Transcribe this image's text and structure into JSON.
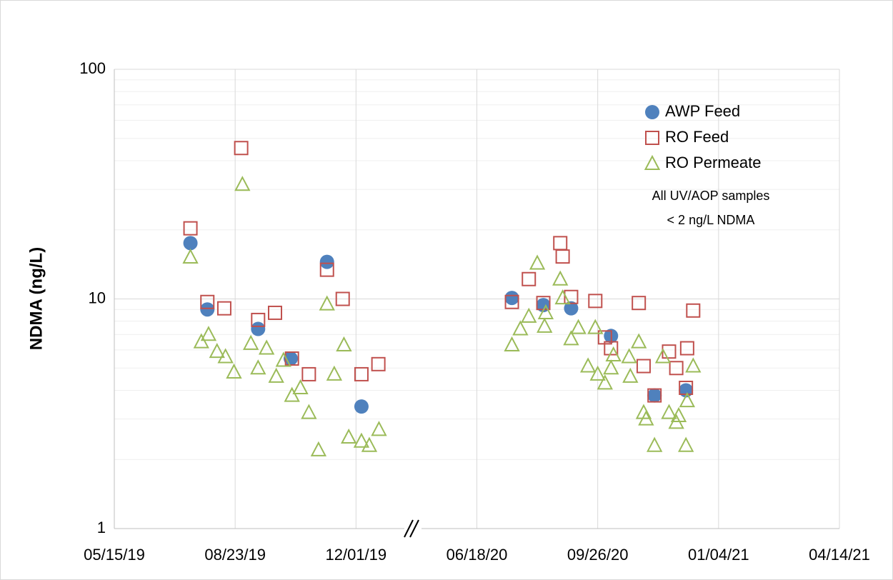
{
  "chart_data": {
    "type": "scatter",
    "y_label": "NDMA (ng/L)",
    "log_y": true,
    "grid": true,
    "legend": "upper right",
    "annotation": [
      "All UV/AOP samples",
      "< 2 ng/L NDMA"
    ],
    "ylim": [
      1,
      100
    ],
    "yticks": [
      1,
      10,
      100
    ],
    "xticks": [
      "05/15/19",
      "08/23/19",
      "12/01/19",
      "06/18/20",
      "09/26/20",
      "01/04/21",
      "04/14/21"
    ],
    "series": [
      {
        "name": "AWP Feed",
        "color": "#4f81bd",
        "marker": "circle",
        "x": [
          "07/17/19",
          "07/31/19",
          "09/11/19",
          "10/08/19",
          "11/07/19",
          "12/10/19",
          "07/17/20",
          "08/12/20",
          "09/04/20",
          "10/07/20",
          "11/12/20",
          "12/08/20"
        ],
        "values": [
          17.5,
          9.0,
          7.4,
          5.5,
          14.5,
          3.4,
          10.1,
          9.4,
          9.1,
          6.9,
          3.8,
          4.0
        ]
      },
      {
        "name": "RO Feed",
        "color": "#c0504d",
        "marker": "square",
        "x": [
          "07/17/19",
          "07/31/19",
          "08/14/19",
          "08/28/19",
          "09/11/19",
          "09/25/19",
          "10/09/19",
          "10/23/19",
          "11/07/19",
          "11/20/19",
          "12/10/19",
          "01/07/20",
          "07/17/20",
          "07/31/20",
          "08/12/20",
          "08/26/20",
          "08/28/20",
          "09/04/20",
          "09/24/20",
          "10/02/20",
          "10/07/20",
          "10/30/20",
          "11/03/20",
          "11/12/20",
          "11/24/20",
          "11/30/20",
          "12/08/20",
          "12/09/20",
          "12/14/20"
        ],
        "values": [
          20.3,
          9.7,
          9.1,
          45.4,
          8.1,
          8.7,
          5.5,
          4.7,
          13.4,
          10,
          4.7,
          5.2,
          9.7,
          12.2,
          9.6,
          17.5,
          15.3,
          10.2,
          9.8,
          6.8,
          6.1,
          9.6,
          5.1,
          3.8,
          5.9,
          5.0,
          4.1,
          6.1,
          8.9
        ]
      },
      {
        "name": "RO Permeate",
        "color": "#9bbb59",
        "marker": "triangle",
        "x": [
          "07/17/19",
          "07/26/19",
          "08/01/19",
          "08/08/19",
          "08/15/19",
          "08/22/19",
          "08/29/19",
          "09/05/19",
          "09/11/19",
          "09/18/19",
          "09/26/19",
          "10/02/19",
          "10/09/19",
          "10/16/19",
          "10/23/19",
          "10/31/19",
          "11/07/19",
          "11/13/19",
          "11/21/19",
          "11/25/19",
          "12/10/19",
          "12/23/19",
          "01/08/20",
          "07/17/20",
          "07/24/20",
          "07/31/20",
          "08/07/20",
          "08/13/20",
          "08/14/20",
          "08/26/20",
          "08/28/20",
          "09/04/20",
          "09/10/20",
          "09/18/20",
          "09/24/20",
          "09/26/20",
          "10/02/20",
          "10/07/20",
          "10/09/20",
          "10/22/20",
          "10/23/20",
          "10/30/20",
          "11/03/20",
          "11/05/20",
          "11/12/20",
          "11/19/20",
          "11/24/20",
          "11/30/20",
          "12/02/20",
          "12/08/20",
          "12/09/20",
          "12/14/20"
        ],
        "values": [
          15.2,
          6.5,
          7.0,
          5.9,
          5.6,
          4.8,
          31.5,
          6.4,
          5.0,
          6.1,
          4.6,
          5.4,
          3.8,
          4.1,
          3.2,
          2.2,
          9.5,
          4.7,
          6.3,
          2.5,
          2.4,
          2.3,
          2.7,
          6.3,
          7.4,
          8.4,
          14.3,
          7.6,
          8.7,
          12.2,
          10.1,
          6.7,
          7.5,
          5.1,
          7.5,
          4.7,
          4.3,
          5.0,
          5.7,
          5.6,
          4.6,
          6.5,
          3.2,
          3.0,
          2.3,
          5.6,
          3.2,
          2.9,
          3.1,
          2.3,
          3.6,
          5.1
        ]
      }
    ]
  }
}
